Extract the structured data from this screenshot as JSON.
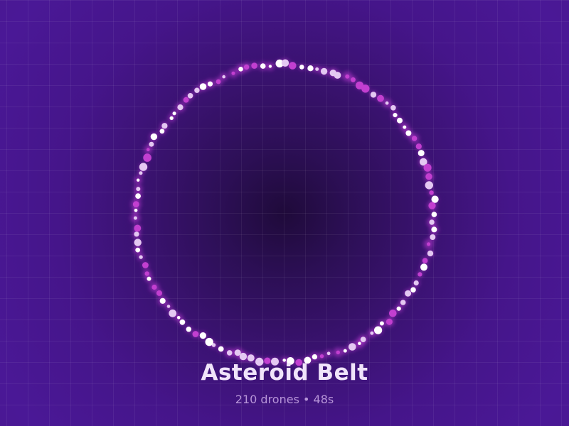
{
  "scene": {
    "title": "Asteroid Belt",
    "stats": "210 drones • 48s"
  },
  "colors": {
    "background": "#471690",
    "drone_white": "#ffffff",
    "drone_lilac": "#e4c8f2",
    "drone_pink": "#c23fd0",
    "title_text": "#f0e4fa",
    "stats_text": "#b795d8"
  }
}
